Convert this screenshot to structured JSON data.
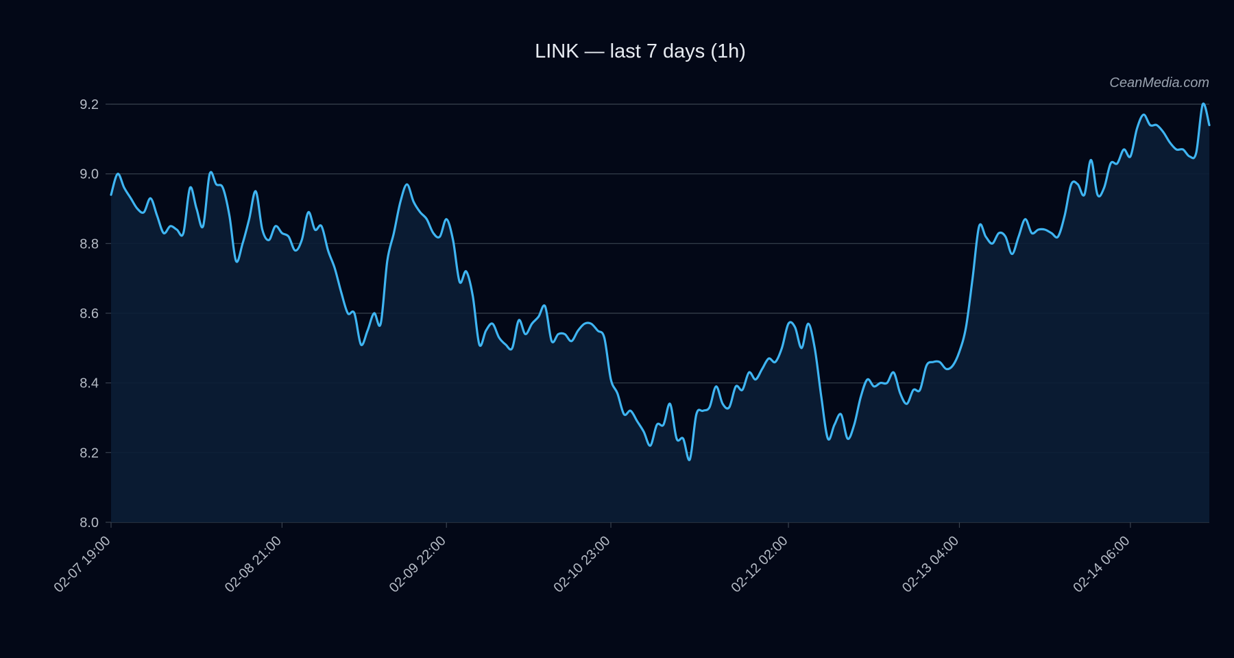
{
  "chart_data": {
    "type": "area",
    "title": "LINK — last 7 days (1h)",
    "watermark": "CeanMedia.com",
    "xlabel": "",
    "ylabel": "",
    "ylim": [
      8.0,
      9.2
    ],
    "yticks": [
      8.0,
      8.2,
      8.4,
      8.6,
      8.8,
      9.0,
      9.2
    ],
    "ytick_labels": [
      "8.0",
      "8.2",
      "8.4",
      "8.6",
      "8.8",
      "9.0",
      "9.2"
    ],
    "xlim": [
      "02-07 19:00",
      "02-14 18:00"
    ],
    "xticks": [
      "02-07 19:00",
      "02-08 21:00",
      "02-09 22:00",
      "02-10 23:00",
      "02-12 02:00",
      "02-13 04:00",
      "02-14 06:00"
    ],
    "grid": "horizontal",
    "colors": {
      "line": "#3fb5f2",
      "fill": "#0b1e35",
      "background": "#030817"
    },
    "x": [
      "02-07 19:00",
      "02-07 20:00",
      "02-07 21:00",
      "02-07 22:00",
      "02-07 23:00",
      "02-08 00:00",
      "02-08 01:00",
      "02-08 02:00",
      "02-08 03:00",
      "02-08 04:00",
      "02-08 05:00",
      "02-08 06:00",
      "02-08 07:00",
      "02-08 08:00",
      "02-08 09:00",
      "02-08 10:00",
      "02-08 11:00",
      "02-08 12:00",
      "02-08 13:00",
      "02-08 14:00",
      "02-08 15:00",
      "02-08 16:00",
      "02-08 17:00",
      "02-08 18:00",
      "02-08 19:00",
      "02-08 20:00",
      "02-08 21:00",
      "02-08 22:00",
      "02-08 23:00",
      "02-09 00:00",
      "02-09 01:00",
      "02-09 02:00",
      "02-09 03:00",
      "02-09 04:00",
      "02-09 05:00",
      "02-09 06:00",
      "02-09 07:00",
      "02-09 08:00",
      "02-09 09:00",
      "02-09 10:00",
      "02-09 11:00",
      "02-09 12:00",
      "02-09 13:00",
      "02-09 14:00",
      "02-09 15:00",
      "02-09 16:00",
      "02-09 17:00",
      "02-09 18:00",
      "02-09 19:00",
      "02-09 20:00",
      "02-09 21:00",
      "02-09 22:00",
      "02-09 23:00",
      "02-10 00:00",
      "02-10 01:00",
      "02-10 02:00",
      "02-10 03:00",
      "02-10 04:00",
      "02-10 05:00",
      "02-10 06:00",
      "02-10 07:00",
      "02-10 08:00",
      "02-10 09:00",
      "02-10 10:00",
      "02-10 11:00",
      "02-10 12:00",
      "02-10 13:00",
      "02-10 14:00",
      "02-10 15:00",
      "02-10 16:00",
      "02-10 17:00",
      "02-10 18:00",
      "02-10 19:00",
      "02-10 20:00",
      "02-10 21:00",
      "02-10 22:00",
      "02-10 23:00",
      "02-11 00:00",
      "02-11 01:00",
      "02-11 02:00",
      "02-11 03:00",
      "02-11 04:00",
      "02-11 05:00",
      "02-11 06:00",
      "02-11 07:00",
      "02-11 08:00",
      "02-11 09:00",
      "02-11 10:00",
      "02-11 11:00",
      "02-11 12:00",
      "02-11 13:00",
      "02-11 14:00",
      "02-11 15:00",
      "02-11 16:00",
      "02-11 17:00",
      "02-11 18:00",
      "02-11 19:00",
      "02-11 20:00",
      "02-11 21:00",
      "02-11 22:00",
      "02-11 23:00",
      "02-12 00:00",
      "02-12 01:00",
      "02-12 02:00",
      "02-12 03:00",
      "02-12 04:00",
      "02-12 05:00",
      "02-12 06:00",
      "02-12 07:00",
      "02-12 08:00",
      "02-12 09:00",
      "02-12 10:00",
      "02-12 11:00",
      "02-12 12:00",
      "02-12 13:00",
      "02-12 14:00",
      "02-12 15:00",
      "02-12 16:00",
      "02-12 17:00",
      "02-12 18:00",
      "02-12 19:00",
      "02-12 20:00",
      "02-12 21:00",
      "02-12 22:00",
      "02-12 23:00",
      "02-13 00:00",
      "02-13 01:00",
      "02-13 02:00",
      "02-13 03:00",
      "02-13 04:00",
      "02-13 05:00",
      "02-13 06:00",
      "02-13 07:00",
      "02-13 08:00",
      "02-13 09:00",
      "02-13 10:00",
      "02-13 11:00",
      "02-13 12:00",
      "02-13 13:00",
      "02-13 14:00",
      "02-13 15:00",
      "02-13 16:00",
      "02-13 17:00",
      "02-13 18:00",
      "02-13 19:00",
      "02-13 20:00",
      "02-13 21:00",
      "02-13 22:00",
      "02-13 23:00",
      "02-14 00:00",
      "02-14 01:00",
      "02-14 02:00",
      "02-14 03:00",
      "02-14 04:00",
      "02-14 05:00",
      "02-14 06:00",
      "02-14 07:00",
      "02-14 08:00",
      "02-14 09:00",
      "02-14 10:00",
      "02-14 11:00",
      "02-14 12:00",
      "02-14 13:00",
      "02-14 14:00",
      "02-14 15:00",
      "02-14 16:00",
      "02-14 17:00",
      "02-14 18:00"
    ],
    "series": [
      {
        "values": [
          8.94,
          9.0,
          8.96,
          8.93,
          8.9,
          8.89,
          8.93,
          8.88,
          8.83,
          8.85,
          8.84,
          8.83,
          8.96,
          8.9,
          8.85,
          9.0,
          8.97,
          8.96,
          8.88,
          8.75,
          8.8,
          8.87,
          8.95,
          8.84,
          8.81,
          8.85,
          8.83,
          8.82,
          8.78,
          8.81,
          8.89,
          8.84,
          8.85,
          8.78,
          8.73,
          8.66,
          8.6,
          8.6,
          8.51,
          8.55,
          8.6,
          8.57,
          8.75,
          8.83,
          8.92,
          8.97,
          8.92,
          8.89,
          8.87,
          8.83,
          8.82,
          8.87,
          8.81,
          8.69,
          8.72,
          8.65,
          8.51,
          8.55,
          8.57,
          8.53,
          8.51,
          8.5,
          8.58,
          8.54,
          8.57,
          8.59,
          8.62,
          8.52,
          8.54,
          8.54,
          8.52,
          8.55,
          8.57,
          8.57,
          8.55,
          8.53,
          8.41,
          8.37,
          8.31,
          8.32,
          8.29,
          8.26,
          8.22,
          8.28,
          8.28,
          8.34,
          8.24,
          8.24,
          8.18,
          8.31,
          8.32,
          8.33,
          8.39,
          8.34,
          8.33,
          8.39,
          8.38,
          8.43,
          8.41,
          8.44,
          8.47,
          8.46,
          8.5,
          8.57,
          8.56,
          8.5,
          8.57,
          8.5,
          8.36,
          8.24,
          8.28,
          8.31,
          8.24,
          8.28,
          8.36,
          8.41,
          8.39,
          8.4,
          8.4,
          8.43,
          8.37,
          8.34,
          8.38,
          8.38,
          8.45,
          8.46,
          8.46,
          8.44,
          8.45,
          8.49,
          8.56,
          8.7,
          8.85,
          8.82,
          8.8,
          8.83,
          8.82,
          8.77,
          8.82,
          8.87,
          8.83,
          8.84,
          8.84,
          8.83,
          8.82,
          8.88,
          8.97,
          8.97,
          8.94,
          9.04,
          8.94,
          8.96,
          9.03,
          9.03,
          9.07,
          9.05,
          9.13,
          9.17,
          9.14,
          9.14,
          9.12,
          9.09,
          9.07,
          9.07,
          9.05,
          9.06,
          9.2,
          9.14
        ]
      }
    ]
  }
}
